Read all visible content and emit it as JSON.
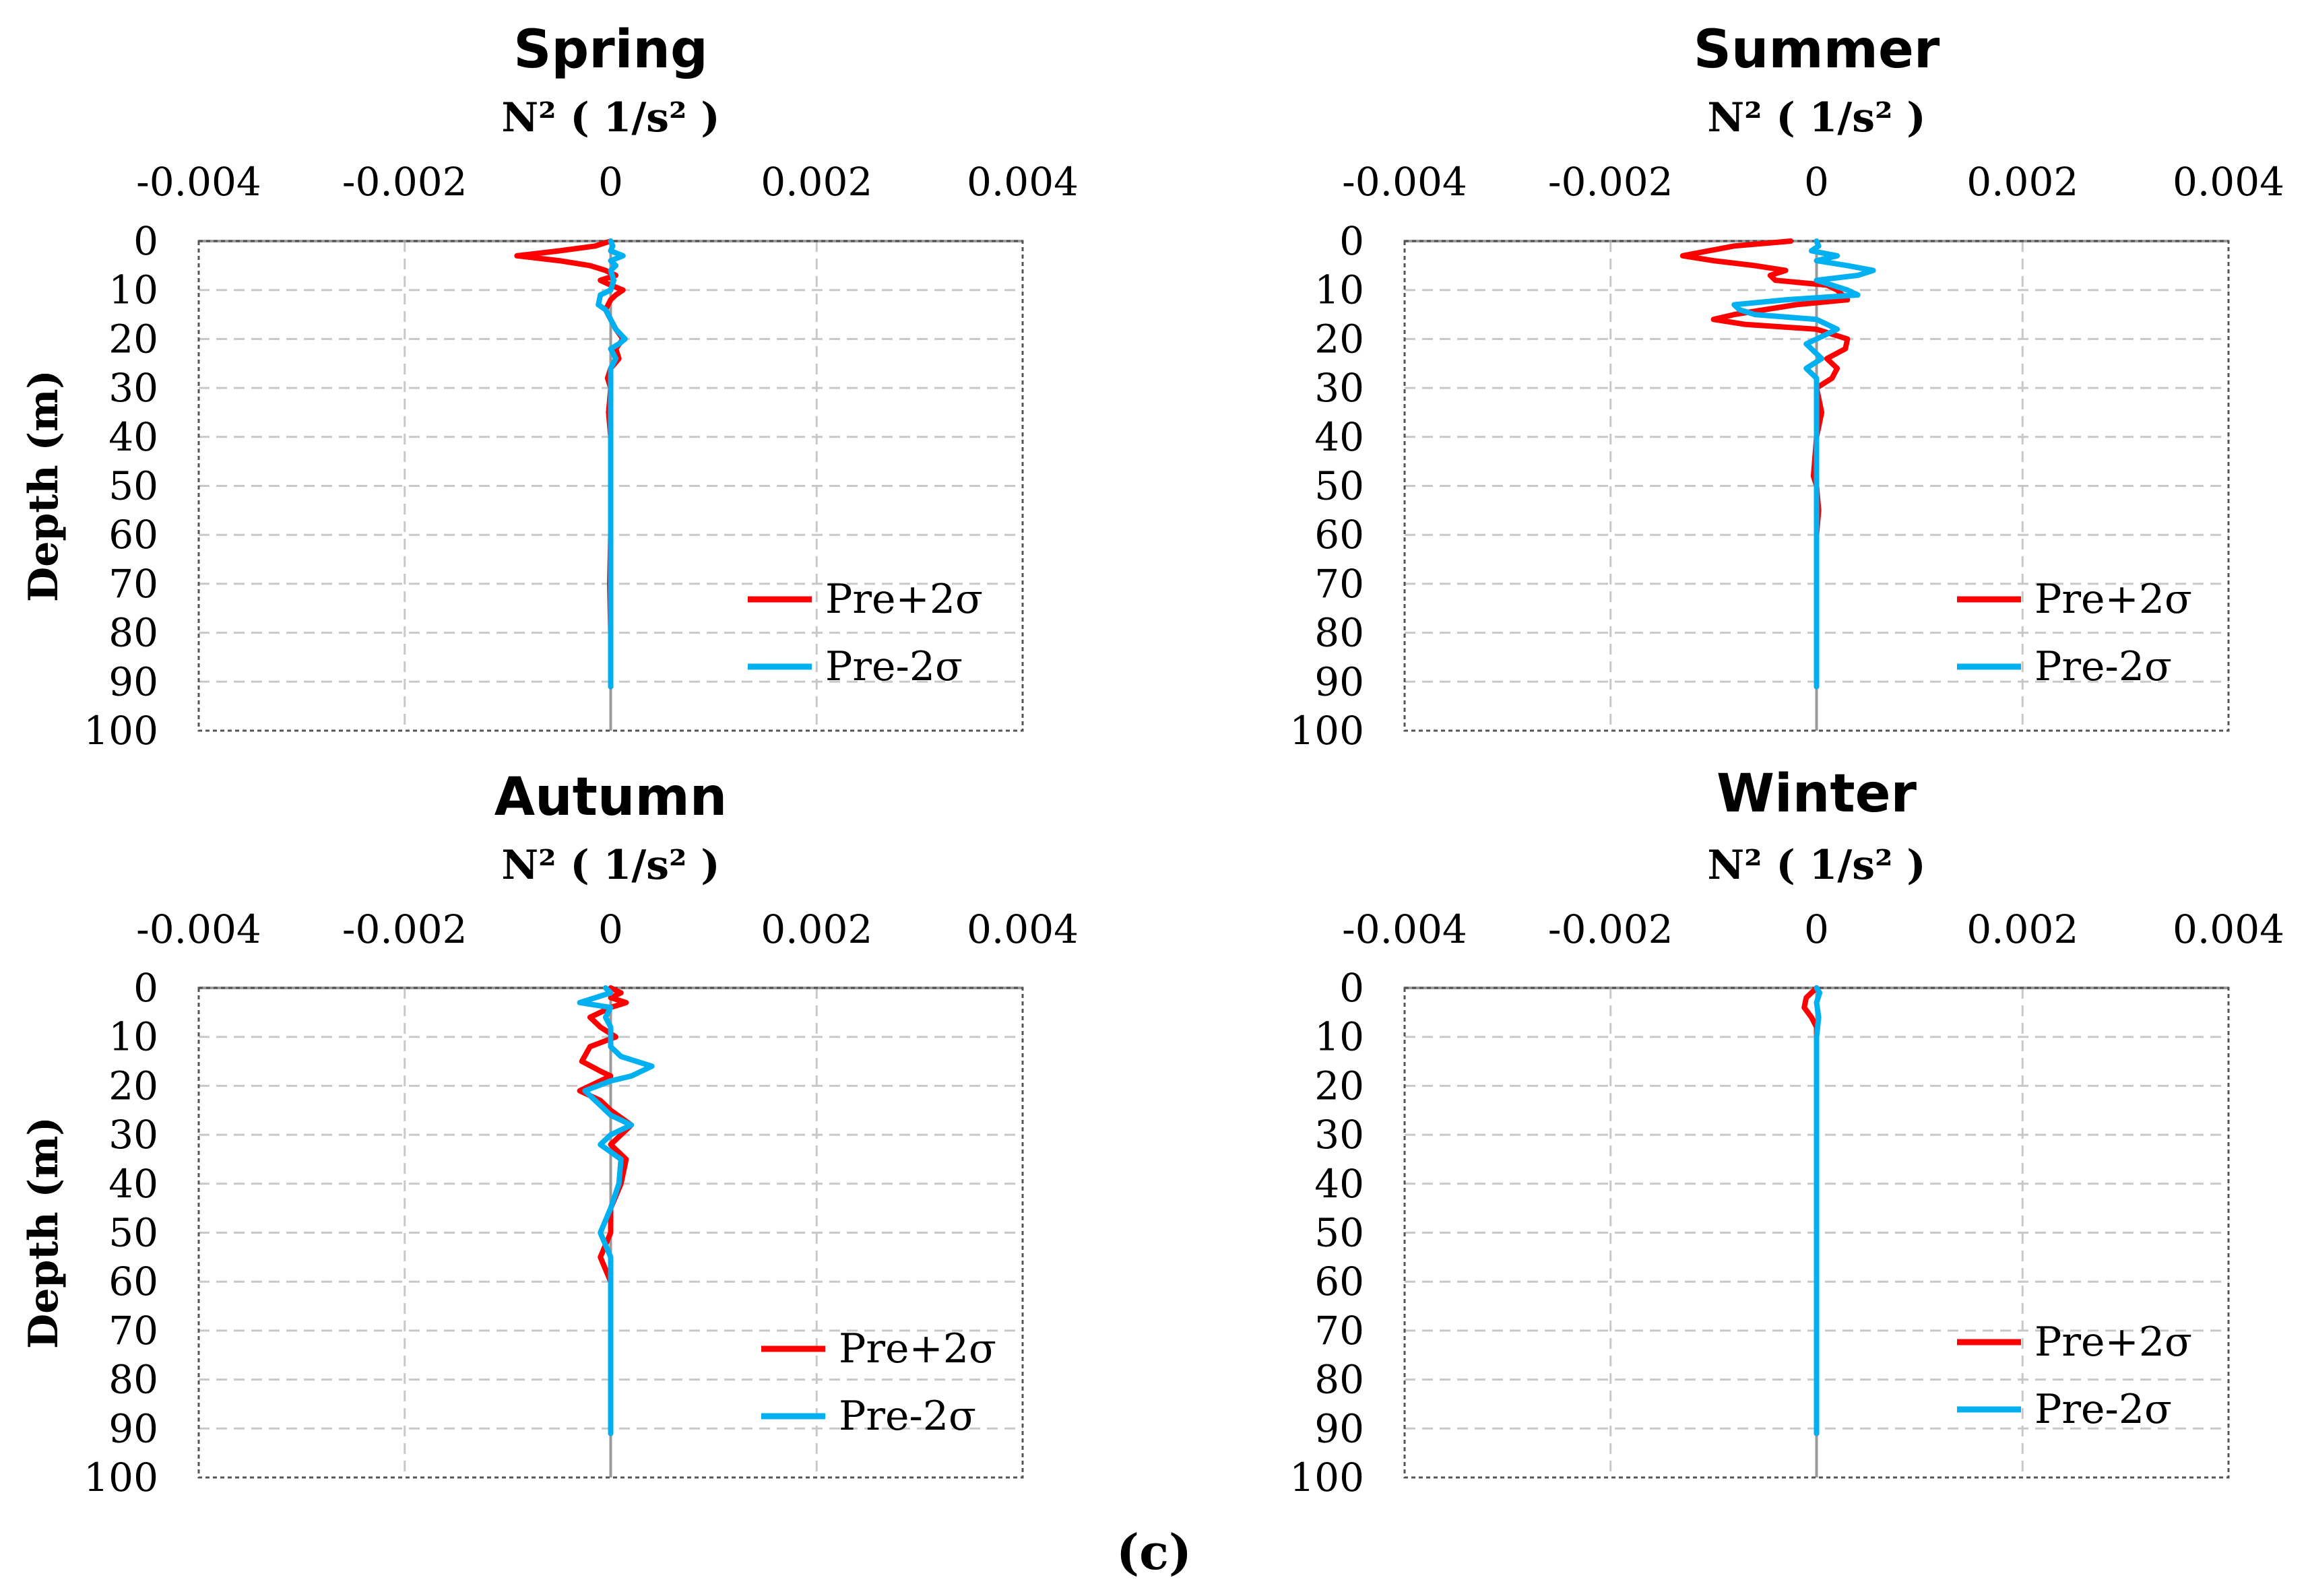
{
  "caption": "(c)",
  "colors": {
    "Pre+2σ": "#ff0000",
    "Pre-2σ": "#00b0f0"
  },
  "chart_data": [
    {
      "type": "line",
      "title": "Spring",
      "xlabel": "N² ( 1/s² )",
      "ylabel": "Depth (m)",
      "xlim": [
        -0.004,
        0.004
      ],
      "ylim": [
        0,
        100
      ],
      "y_inverted": true,
      "x_ticks": [
        "-0.004",
        "-0.002",
        "0",
        "0.002",
        "0.004"
      ],
      "y_ticks": [
        "0",
        "10",
        "20",
        "30",
        "40",
        "50",
        "60",
        "70",
        "80",
        "90",
        "100"
      ],
      "grid": true,
      "legend_position": "bottom-right",
      "series": [
        {
          "name": "Pre+2σ",
          "points": [
            [
              0.0,
              0
            ],
            [
              -0.00015,
              1
            ],
            [
              -0.0005,
              2
            ],
            [
              -0.00091,
              3
            ],
            [
              -0.0005,
              4
            ],
            [
              -0.0002,
              5
            ],
            [
              -5e-05,
              6
            ],
            [
              5e-05,
              7
            ],
            [
              -0.0001,
              8
            ],
            [
              0.0,
              9
            ],
            [
              0.00012,
              10
            ],
            [
              5e-05,
              11
            ],
            [
              0.0,
              12
            ],
            [
              -5e-05,
              14
            ],
            [
              0.0,
              16
            ],
            [
              5e-05,
              18
            ],
            [
              0.00012,
              20
            ],
            [
              5e-05,
              22
            ],
            [
              8e-05,
              24
            ],
            [
              0.0,
              26
            ],
            [
              -3e-05,
              28
            ],
            [
              0.0,
              30
            ],
            [
              -2e-05,
              35
            ],
            [
              0.0,
              40
            ],
            [
              0.0,
              50
            ],
            [
              0.0,
              60
            ],
            [
              -1e-05,
              70
            ],
            [
              0.0,
              80
            ],
            [
              0.0,
              91
            ]
          ]
        },
        {
          "name": "Pre-2σ",
          "points": [
            [
              0.0,
              0
            ],
            [
              2e-05,
              1
            ],
            [
              0.0,
              2
            ],
            [
              0.00012,
              3
            ],
            [
              0.0,
              4
            ],
            [
              5e-05,
              5
            ],
            [
              0.0,
              6
            ],
            [
              3e-05,
              8
            ],
            [
              0.0,
              10
            ],
            [
              -0.0001,
              11
            ],
            [
              -0.00012,
              13
            ],
            [
              -5e-05,
              14
            ],
            [
              0.0,
              16
            ],
            [
              5e-05,
              18
            ],
            [
              0.00014,
              20
            ],
            [
              8e-05,
              21
            ],
            [
              0.0,
              22
            ],
            [
              5e-05,
              24
            ],
            [
              0.0,
              26
            ],
            [
              0.0,
              30
            ],
            [
              0.0,
              40
            ],
            [
              0.0,
              50
            ],
            [
              0.0,
              60
            ],
            [
              0.0,
              70
            ],
            [
              0.0,
              80
            ],
            [
              0.0,
              91
            ]
          ]
        }
      ]
    },
    {
      "type": "line",
      "title": "Summer",
      "xlabel": "N² ( 1/s² )",
      "ylabel": "Depth (m)",
      "xlim": [
        -0.004,
        0.004
      ],
      "ylim": [
        0,
        100
      ],
      "y_inverted": true,
      "x_ticks": [
        "-0.004",
        "-0.002",
        "0",
        "0.002",
        "0.004"
      ],
      "y_ticks": [
        "0",
        "10",
        "20",
        "30",
        "40",
        "50",
        "60",
        "70",
        "80",
        "90",
        "100"
      ],
      "grid": true,
      "legend_position": "bottom-right",
      "series": [
        {
          "name": "Pre+2σ",
          "points": [
            [
              -0.00025,
              0
            ],
            [
              -0.0008,
              1
            ],
            [
              -0.0013,
              3
            ],
            [
              -0.001,
              4
            ],
            [
              -0.0006,
              5
            ],
            [
              -0.0003,
              6
            ],
            [
              -0.00045,
              7
            ],
            [
              -0.0004,
              8
            ],
            [
              0.0001,
              9
            ],
            [
              0.0002,
              10
            ],
            [
              0.0003,
              12
            ],
            [
              -0.0002,
              13
            ],
            [
              -0.0008,
              15
            ],
            [
              -0.001,
              16
            ],
            [
              -0.0007,
              17
            ],
            [
              0.0,
              18
            ],
            [
              0.0003,
              20
            ],
            [
              0.00028,
              22
            ],
            [
              0.0001,
              24
            ],
            [
              0.0002,
              26
            ],
            [
              0.00015,
              28
            ],
            [
              0.0,
              30
            ],
            [
              5e-05,
              35
            ],
            [
              0.0,
              40
            ],
            [
              -3e-05,
              48
            ],
            [
              0.0,
              50
            ],
            [
              2e-05,
              55
            ],
            [
              0.0,
              60
            ],
            [
              0.0,
              70
            ],
            [
              0.0,
              80
            ],
            [
              0.0,
              91
            ]
          ]
        },
        {
          "name": "Pre-2σ",
          "points": [
            [
              0.0,
              0
            ],
            [
              2e-05,
              1
            ],
            [
              -5e-05,
              2
            ],
            [
              0.0002,
              3
            ],
            [
              0.0,
              4
            ],
            [
              0.0003,
              5
            ],
            [
              0.00055,
              6
            ],
            [
              0.0004,
              7
            ],
            [
              0.0,
              8
            ],
            [
              0.0003,
              10
            ],
            [
              0.0004,
              11
            ],
            [
              -0.0003,
              12
            ],
            [
              -0.0008,
              13
            ],
            [
              -0.00075,
              14
            ],
            [
              -0.0006,
              15
            ],
            [
              0.0,
              16
            ],
            [
              0.0002,
              18
            ],
            [
              0.0001,
              19
            ],
            [
              -0.0001,
              21
            ],
            [
              5e-05,
              24
            ],
            [
              -0.0001,
              26
            ],
            [
              0.0,
              28
            ],
            [
              0.0,
              30
            ],
            [
              0.0,
              40
            ],
            [
              0.0,
              50
            ],
            [
              0.0,
              60
            ],
            [
              0.0,
              70
            ],
            [
              0.0,
              80
            ],
            [
              0.0,
              91
            ]
          ]
        }
      ]
    },
    {
      "type": "line",
      "title": "Autumn",
      "xlabel": "N² ( 1/s² )",
      "ylabel": "Depth (m)",
      "xlim": [
        -0.004,
        0.004
      ],
      "ylim": [
        0,
        100
      ],
      "y_inverted": true,
      "x_ticks": [
        "-0.004",
        "-0.002",
        "0",
        "0.002",
        "0.004"
      ],
      "y_ticks": [
        "0",
        "10",
        "20",
        "30",
        "40",
        "50",
        "60",
        "70",
        "80",
        "90",
        "100"
      ],
      "grid": true,
      "legend_position": "bottom-right",
      "series": [
        {
          "name": "Pre+2σ",
          "points": [
            [
              0.0,
              0
            ],
            [
              0.0001,
              1
            ],
            [
              0.0,
              2
            ],
            [
              0.00015,
              3
            ],
            [
              0.0,
              4
            ],
            [
              -0.0002,
              6
            ],
            [
              -0.0001,
              8
            ],
            [
              5e-05,
              10
            ],
            [
              -0.0002,
              12
            ],
            [
              -0.00028,
              15
            ],
            [
              -0.0001,
              17
            ],
            [
              0.0,
              18
            ],
            [
              -0.0003,
              21
            ],
            [
              -0.0001,
              23
            ],
            [
              0.0,
              25
            ],
            [
              0.0002,
              28
            ],
            [
              0.0001,
              30
            ],
            [
              0.0,
              32
            ],
            [
              0.00015,
              35
            ],
            [
              0.0001,
              40
            ],
            [
              0.0,
              45
            ],
            [
              0.0,
              50
            ],
            [
              -0.0001,
              55
            ],
            [
              0.0,
              60
            ],
            [
              0.0,
              70
            ],
            [
              0.0,
              80
            ],
            [
              0.0,
              91
            ]
          ]
        },
        {
          "name": "Pre-2σ",
          "points": [
            [
              -5e-05,
              0
            ],
            [
              0.0,
              1
            ],
            [
              -0.0003,
              3
            ],
            [
              0.0,
              4
            ],
            [
              -5e-05,
              6
            ],
            [
              0.0,
              8
            ],
            [
              0.0,
              10
            ],
            [
              0.0,
              12
            ],
            [
              0.0001,
              14
            ],
            [
              0.0004,
              16
            ],
            [
              0.0002,
              18
            ],
            [
              0.0,
              19
            ],
            [
              -0.00025,
              21
            ],
            [
              -0.0001,
              24
            ],
            [
              0.0,
              26
            ],
            [
              0.0002,
              28
            ],
            [
              0.0,
              30
            ],
            [
              -0.0001,
              32
            ],
            [
              0.0001,
              35
            ],
            [
              8e-05,
              40
            ],
            [
              0.0,
              45
            ],
            [
              -0.0001,
              50
            ],
            [
              0.0,
              55
            ],
            [
              0.0,
              60
            ],
            [
              0.0,
              70
            ],
            [
              0.0,
              80
            ],
            [
              0.0,
              91
            ]
          ]
        }
      ]
    },
    {
      "type": "line",
      "title": "Winter",
      "xlabel": "N² ( 1/s² )",
      "ylabel": "Depth (m)",
      "xlim": [
        -0.004,
        0.004
      ],
      "ylim": [
        0,
        100
      ],
      "y_inverted": true,
      "x_ticks": [
        "-0.004",
        "-0.002",
        "0",
        "0.002",
        "0.004"
      ],
      "y_ticks": [
        "0",
        "10",
        "20",
        "30",
        "40",
        "50",
        "60",
        "70",
        "80",
        "90",
        "100"
      ],
      "grid": true,
      "legend_position": "bottom-right",
      "series": [
        {
          "name": "Pre+2σ",
          "points": [
            [
              0.0,
              0
            ],
            [
              -0.0001,
              2
            ],
            [
              -0.00012,
              4
            ],
            [
              -5e-05,
              6
            ],
            [
              0.0,
              8
            ],
            [
              0.0,
              20
            ],
            [
              0.0,
              40
            ],
            [
              0.0,
              60
            ],
            [
              0.0,
              80
            ],
            [
              0.0,
              91
            ]
          ]
        },
        {
          "name": "Pre-2σ",
          "points": [
            [
              0.0,
              0
            ],
            [
              3e-05,
              1
            ],
            [
              0.0,
              3
            ],
            [
              2e-05,
              6
            ],
            [
              0.0,
              10
            ],
            [
              0.0,
              20
            ],
            [
              0.0,
              40
            ],
            [
              0.0,
              60
            ],
            [
              0.0,
              80
            ],
            [
              0.0,
              91
            ]
          ]
        }
      ]
    }
  ]
}
